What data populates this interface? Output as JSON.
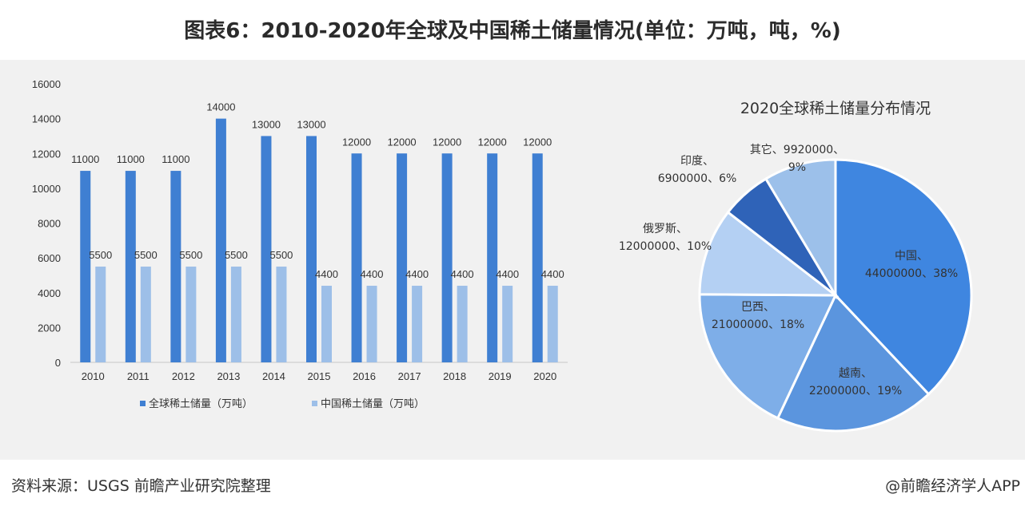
{
  "title": "图表6：2010-2020年全球及中国稀土储量情况(单位：万吨，吨，%)",
  "source": "资料来源：USGS 前瞻产业研究院整理",
  "credit": "@前瞻经济学人APP",
  "chart_data": [
    {
      "type": "bar",
      "title": "",
      "categories": [
        "2010",
        "2011",
        "2012",
        "2013",
        "2014",
        "2015",
        "2016",
        "2017",
        "2018",
        "2019",
        "2020"
      ],
      "series": [
        {
          "name": "全球稀土储量（万吨）",
          "color": "#3f7fd2",
          "values": [
            11000,
            11000,
            11000,
            14000,
            13000,
            13000,
            12000,
            12000,
            12000,
            12000,
            12000
          ]
        },
        {
          "name": "中国稀土储量（万吨）",
          "color": "#9dbfe8",
          "values": [
            5500,
            5500,
            5500,
            5500,
            5500,
            4400,
            4400,
            4400,
            4400,
            4400,
            4400
          ]
        }
      ],
      "ylim": [
        0,
        16000
      ],
      "yticks": [
        0,
        2000,
        4000,
        6000,
        8000,
        10000,
        12000,
        14000,
        16000
      ],
      "legend": "bottom",
      "grid": false
    },
    {
      "type": "pie",
      "title": "2020全球稀土储量分布情况",
      "slices": [
        {
          "name": "中国",
          "value": 44000000,
          "pct": "38%",
          "color": "#3f86e0",
          "label1": "中国、",
          "label2": "44000000、38%"
        },
        {
          "name": "越南",
          "value": 22000000,
          "pct": "19%",
          "color": "#5b95de",
          "label1": "越南、",
          "label2": "22000000、19%"
        },
        {
          "name": "巴西",
          "value": 21000000,
          "pct": "18%",
          "color": "#7eaee8",
          "label1": "巴西、",
          "label2": "21000000、18%"
        },
        {
          "name": "俄罗斯",
          "value": 12000000,
          "pct": "10%",
          "color": "#b4d0f3",
          "label1": "俄罗斯、",
          "label2": "12000000、10%"
        },
        {
          "name": "印度",
          "value": 6900000,
          "pct": "6%",
          "color": "#2f63b8",
          "label1": "印度、",
          "label2": "6900000、6%"
        },
        {
          "name": "其它",
          "value": 9920000,
          "pct": "9%",
          "color": "#9cc0ea",
          "label1": "其它、9920000、",
          "label2": "9%"
        }
      ]
    }
  ]
}
